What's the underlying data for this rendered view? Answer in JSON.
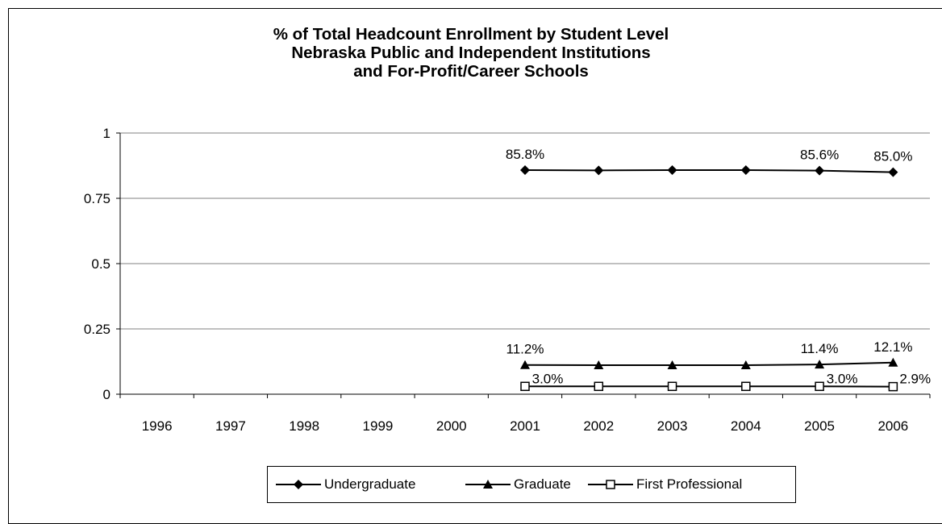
{
  "chart_data": {
    "type": "line",
    "title_lines": [
      "% of Total Headcount Enrollment by Student Level",
      "Nebraska Public and Independent Institutions",
      "and For-Profit/Career Schools"
    ],
    "categories": [
      "1996",
      "1997",
      "1998",
      "1999",
      "2000",
      "2001",
      "2002",
      "2003",
      "2004",
      "2005",
      "2006"
    ],
    "ylim": [
      0,
      1
    ],
    "yticks": [
      "0",
      "0.25",
      "0.5",
      "0.75",
      "1"
    ],
    "ytick_values": [
      0,
      0.25,
      0.5,
      0.75,
      1
    ],
    "grid": "horizontal",
    "legend_position": "bottom",
    "series": [
      {
        "name": "Undergraduate",
        "marker": "diamond",
        "color": "#000000",
        "values": [
          null,
          null,
          null,
          null,
          null,
          0.858,
          0.857,
          0.858,
          0.858,
          0.856,
          0.85
        ],
        "labels": [
          "",
          "",
          "",
          "",
          "",
          "85.8%",
          "",
          "",
          "",
          "85.6%",
          "85.0%"
        ]
      },
      {
        "name": "Graduate",
        "marker": "triangle",
        "color": "#000000",
        "values": [
          null,
          null,
          null,
          null,
          null,
          0.112,
          0.111,
          0.111,
          0.111,
          0.114,
          0.121
        ],
        "labels": [
          "",
          "",
          "",
          "",
          "",
          "11.2%",
          "",
          "",
          "",
          "11.4%",
          "12.1%"
        ]
      },
      {
        "name": "First Professional",
        "marker": "square-open",
        "color": "#000000",
        "values": [
          null,
          null,
          null,
          null,
          null,
          0.03,
          0.03,
          0.03,
          0.03,
          0.03,
          0.029
        ],
        "labels": [
          "",
          "",
          "",
          "",
          "",
          "3.0%",
          "",
          "",
          "",
          "3.0%",
          "2.9%"
        ]
      }
    ]
  }
}
